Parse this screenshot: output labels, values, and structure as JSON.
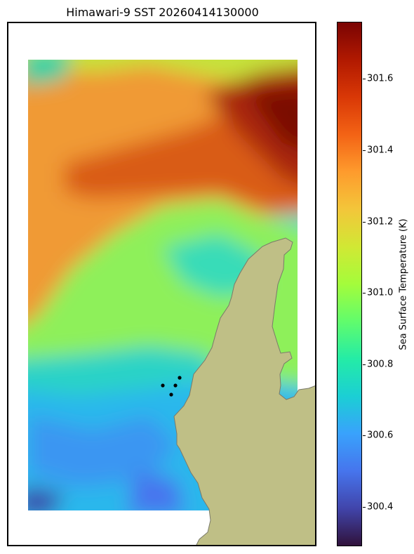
{
  "title": "Himawari-9 SST 20260414130000",
  "colorbar": {
    "label": "Sea Surface Temperature (K)",
    "colormap": "turbo",
    "range": [
      300.29,
      301.76
    ],
    "ticks": [
      "301.6",
      "301.4",
      "301.2",
      "301.0",
      "300.8",
      "300.6",
      "300.4"
    ]
  },
  "colors": {
    "land": "#bfbf86",
    "coastline": "#7a7a6a",
    "station_marker": "#000000"
  },
  "map_data": {
    "type": "raster-map",
    "field": "sea surface temperature",
    "units": "K",
    "stations": 4
  }
}
